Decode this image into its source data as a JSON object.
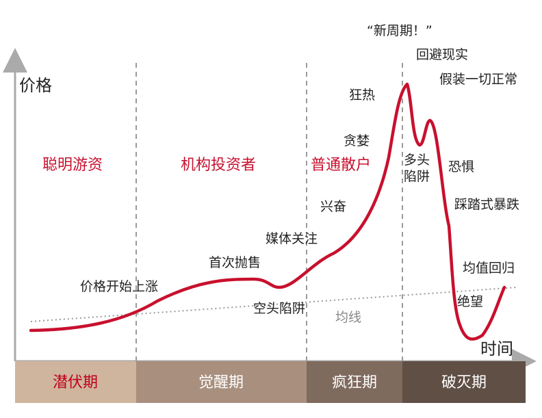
{
  "axes": {
    "y_label": "价格",
    "x_label": "时间"
  },
  "investor_labels": [
    "聪明游资",
    "机构投资者",
    "普通散户"
  ],
  "phases": [
    {
      "label": "潜伏期",
      "bg": "#cfb49e",
      "fg": "#c0001a"
    },
    {
      "label": "觉醒期",
      "bg": "#a88f7e",
      "fg": "#ffffff"
    },
    {
      "label": "疯狂期",
      "bg": "#7f6a5e",
      "fg": "#ffffff"
    },
    {
      "label": "破灭期",
      "bg": "#5f4f45",
      "fg": "#ffffff"
    }
  ],
  "annotations": {
    "price_rise": "价格开始上涨",
    "first_sell": "首次抛售",
    "short_trap": "空头陷阱",
    "media": "媒体关注",
    "excitement": "兴奋",
    "greed": "贪婪",
    "mania": "狂热",
    "new_cycle": "“新周期！”",
    "avoid_reality": "回避现实",
    "pretend_normal": "假装一切正常",
    "bull_trap": "多头\n陷阱",
    "fear": "恐惧",
    "stampede": "踩踏式暴跌",
    "despair": "绝望",
    "mean_revert": "均值回归",
    "mean_line": "均线"
  },
  "colors": {
    "curve": "#c8102e",
    "investor_text": "#c8102e",
    "axis": "#aaaaaa",
    "dashed": "#999999",
    "mean_line_text": "#888888"
  }
}
